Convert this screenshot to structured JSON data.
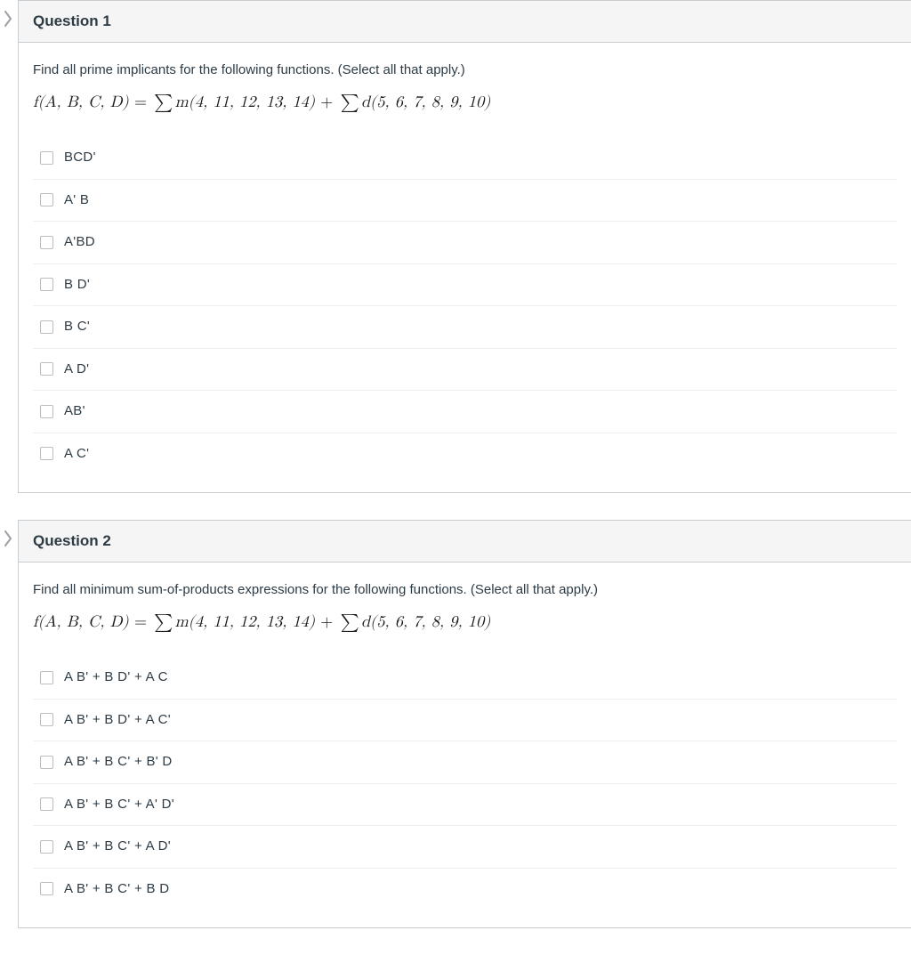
{
  "questions": [
    {
      "title": "Question 1",
      "prompt": "Find all prime implicants for the following functions. (Select all that apply.)",
      "formula_fn": "f(A, B, C, D)",
      "formula_eq": " = ",
      "formula_m": "m(4, 11, 12, 13, 14)",
      "formula_plus": " + ",
      "formula_d": "d(5, 6, 7, 8, 9, 10)",
      "options": [
        {
          "label": "BCD'"
        },
        {
          "label": "A' B"
        },
        {
          "label": "A'BD"
        },
        {
          "label": "B D'"
        },
        {
          "label": "B C'"
        },
        {
          "label": "A D'"
        },
        {
          "label": "AB'"
        },
        {
          "label": "A C'"
        }
      ]
    },
    {
      "title": "Question 2",
      "prompt": "Find all minimum sum-of-products expressions for the following functions. (Select all that apply.)",
      "formula_fn": "f(A, B, C, D)",
      "formula_eq": " = ",
      "formula_m": "m(4, 11, 12, 13, 14)",
      "formula_plus": " + ",
      "formula_d": "d(5, 6, 7, 8, 9, 10)",
      "options": [
        {
          "label": "A B' + B D' + A C"
        },
        {
          "label": "A B' + B D' + A C'"
        },
        {
          "label": "A B' + B C' + B' D"
        },
        {
          "label": "A B' + B C' + A' D'"
        },
        {
          "label": "A B' + B C' + A D'"
        },
        {
          "label": "A B' + B C' + B D"
        }
      ]
    }
  ],
  "colors": {
    "marker_stroke": "#9aa0a6",
    "border": "#c7cdd1",
    "header_bg": "#f5f5f5",
    "row_border": "#eceeef",
    "text": "#2d3b45"
  }
}
